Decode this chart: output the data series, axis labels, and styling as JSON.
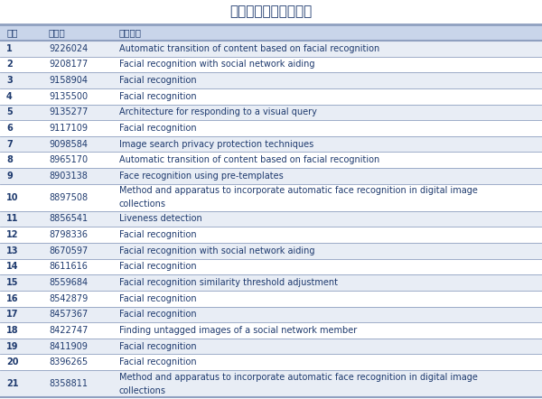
{
  "title": "谷歌脸部识别积累深厚",
  "header": [
    "序号",
    "专利号",
    "专利名称"
  ],
  "rows": [
    [
      "1",
      "9226024",
      "Automatic transition of content based on facial recognition"
    ],
    [
      "2",
      "9208177",
      "Facial recognition with social network aiding"
    ],
    [
      "3",
      "9158904",
      "Facial recognition"
    ],
    [
      "4",
      "9135500",
      "Facial recognition"
    ],
    [
      "5",
      "9135277",
      "Architecture for responding to a visual query"
    ],
    [
      "6",
      "9117109",
      "Facial recognition"
    ],
    [
      "7",
      "9098584",
      "Image search privacy protection techniques"
    ],
    [
      "8",
      "8965170",
      "Automatic transition of content based on facial recognition"
    ],
    [
      "9",
      "8903138",
      "Face recognition using pre-templates"
    ],
    [
      "10",
      "8897508",
      "Method and apparatus to incorporate automatic face recognition in digital image\ncollections"
    ],
    [
      "11",
      "8856541",
      "Liveness detection"
    ],
    [
      "12",
      "8798336",
      "Facial recognition"
    ],
    [
      "13",
      "8670597",
      "Facial recognition with social network aiding"
    ],
    [
      "14",
      "8611616",
      "Facial recognition"
    ],
    [
      "15",
      "8559684",
      "Facial recognition similarity threshold adjustment"
    ],
    [
      "16",
      "8542879",
      "Facial recognition"
    ],
    [
      "17",
      "8457367",
      "Facial recognition"
    ],
    [
      "18",
      "8422747",
      "Finding untagged images of a social network member"
    ],
    [
      "19",
      "8411909",
      "Facial recognition"
    ],
    [
      "20",
      "8396265",
      "Facial recognition"
    ],
    [
      "21",
      "8358811",
      "Method and apparatus to incorporate automatic face recognition in digital image\ncollections"
    ]
  ],
  "header_color": "#1e3a6e",
  "row_text_color": "#1e3a6e",
  "title_color": "#1e3a6e",
  "bg_color": "#ffffff",
  "header_bg": "#c9d5ea",
  "alt_row_bg": "#e8edf5",
  "line_color": "#8fa0c0",
  "title_fontsize": 11,
  "header_fontsize": 7.5,
  "row_fontsize": 7.0,
  "fig_width": 6.0,
  "fig_height": 4.42,
  "dpi": 100
}
